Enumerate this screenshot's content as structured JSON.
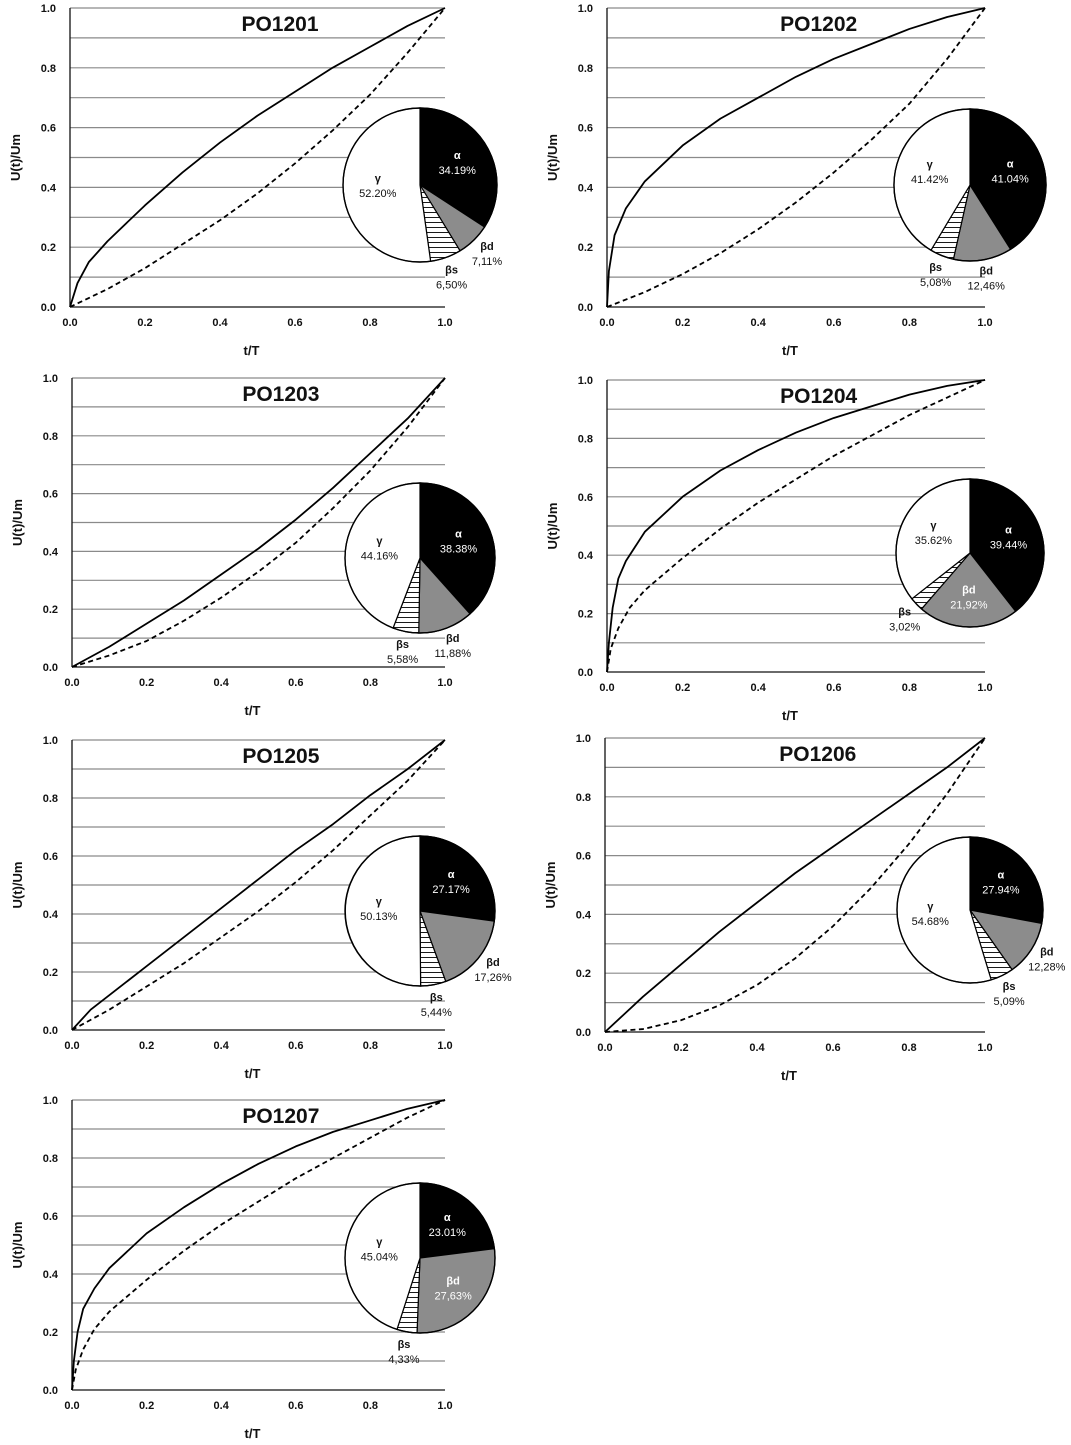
{
  "colors": {
    "alpha": "#000000",
    "beta_d": "#8c8c8c",
    "beta_s": "#ffffff",
    "gamma": "#ffffff",
    "grid": "#8a8a8a",
    "axis": "#111111"
  },
  "chart_data": [
    {
      "type": "line",
      "title": "PO1201",
      "xlabel": "t/T",
      "ylabel": "U(t)/Um",
      "xlim": [
        0,
        1
      ],
      "ylim": [
        0,
        1
      ],
      "xticks": [
        "0.0",
        "0.2",
        "0.4",
        "0.6",
        "0.8",
        "1.0"
      ],
      "yticks": [
        "0.0",
        "0.2",
        "0.4",
        "0.6",
        "0.8",
        "1.0"
      ],
      "series": [
        {
          "style": "solid",
          "x": [
            0,
            0.02,
            0.05,
            0.1,
            0.2,
            0.3,
            0.4,
            0.5,
            0.6,
            0.7,
            0.8,
            0.9,
            1.0
          ],
          "y": [
            0,
            0.08,
            0.15,
            0.22,
            0.34,
            0.45,
            0.55,
            0.64,
            0.72,
            0.8,
            0.87,
            0.94,
            1.0
          ]
        },
        {
          "style": "dashed",
          "x": [
            0,
            0.1,
            0.2,
            0.3,
            0.4,
            0.5,
            0.6,
            0.7,
            0.8,
            0.9,
            1.0
          ],
          "y": [
            0,
            0.06,
            0.13,
            0.21,
            0.29,
            0.38,
            0.48,
            0.59,
            0.71,
            0.85,
            1.0
          ]
        }
      ],
      "pie": {
        "title": "",
        "slices": [
          {
            "name": "α",
            "label": "34.19%",
            "value": 34.19,
            "color": "#000000"
          },
          {
            "name": "βd",
            "label": "7,11%",
            "value": 7.11,
            "color": "#8c8c8c"
          },
          {
            "name": "βs",
            "label": "6,50%",
            "value": 6.5,
            "color": "#ffffff",
            "hatch": true
          },
          {
            "name": "γ",
            "label": "52.20%",
            "value": 52.2,
            "color": "#ffffff"
          }
        ]
      }
    },
    {
      "type": "line",
      "title": "PO1202",
      "xlabel": "t/T",
      "ylabel": "U(t)/Um",
      "xlim": [
        0,
        1
      ],
      "ylim": [
        0,
        1
      ],
      "xticks": [
        "0.0",
        "0.2",
        "0.4",
        "0.6",
        "0.8",
        "1.0"
      ],
      "yticks": [
        "0.0",
        "0.2",
        "0.4",
        "0.6",
        "0.8",
        "1.0"
      ],
      "series": [
        {
          "style": "solid",
          "x": [
            0,
            0.005,
            0.02,
            0.05,
            0.1,
            0.2,
            0.3,
            0.4,
            0.5,
            0.6,
            0.7,
            0.8,
            0.9,
            1.0
          ],
          "y": [
            0,
            0.12,
            0.24,
            0.33,
            0.42,
            0.54,
            0.63,
            0.7,
            0.77,
            0.83,
            0.88,
            0.93,
            0.97,
            1.0
          ]
        },
        {
          "style": "dashed",
          "x": [
            0,
            0.1,
            0.2,
            0.3,
            0.4,
            0.5,
            0.6,
            0.7,
            0.8,
            0.9,
            1.0
          ],
          "y": [
            0,
            0.05,
            0.11,
            0.18,
            0.26,
            0.35,
            0.45,
            0.56,
            0.68,
            0.83,
            1.0
          ]
        }
      ],
      "pie": {
        "title": "",
        "slices": [
          {
            "name": "α",
            "label": "41.04%",
            "value": 41.04,
            "color": "#000000"
          },
          {
            "name": "βd",
            "label": "12,46%",
            "value": 12.46,
            "color": "#8c8c8c"
          },
          {
            "name": "βs",
            "label": "5,08%",
            "value": 5.08,
            "color": "#ffffff",
            "hatch": true
          },
          {
            "name": "γ",
            "label": "41.42%",
            "value": 41.42,
            "color": "#ffffff"
          }
        ]
      }
    },
    {
      "type": "line",
      "title": "PO1203",
      "xlabel": "t/T",
      "ylabel": "U(t)/Um",
      "xlim": [
        0,
        1
      ],
      "ylim": [
        0,
        1
      ],
      "xticks": [
        "0.0",
        "0.2",
        "0.4",
        "0.6",
        "0.8",
        "1.0"
      ],
      "yticks": [
        "0.0",
        "0.2",
        "0.4",
        "0.6",
        "0.8",
        "1.0"
      ],
      "series": [
        {
          "style": "solid",
          "x": [
            0,
            0.1,
            0.2,
            0.3,
            0.4,
            0.5,
            0.6,
            0.7,
            0.8,
            0.9,
            1.0
          ],
          "y": [
            0,
            0.07,
            0.15,
            0.23,
            0.32,
            0.41,
            0.51,
            0.62,
            0.74,
            0.86,
            1.0
          ]
        },
        {
          "style": "dashed",
          "x": [
            0,
            0.1,
            0.2,
            0.3,
            0.4,
            0.5,
            0.6,
            0.7,
            0.8,
            0.9,
            1.0
          ],
          "y": [
            0,
            0.04,
            0.09,
            0.16,
            0.24,
            0.33,
            0.43,
            0.55,
            0.68,
            0.83,
            1.0
          ]
        }
      ],
      "pie": {
        "title": "",
        "slices": [
          {
            "name": "α",
            "label": "38.38%",
            "value": 38.38,
            "color": "#000000"
          },
          {
            "name": "βd",
            "label": "11,88%",
            "value": 11.88,
            "color": "#8c8c8c"
          },
          {
            "name": "βs",
            "label": "5,58%",
            "value": 5.58,
            "color": "#ffffff",
            "hatch": true
          },
          {
            "name": "γ",
            "label": "44.16%",
            "value": 44.16,
            "color": "#ffffff"
          }
        ]
      }
    },
    {
      "type": "line",
      "title": "PO1204",
      "xlabel": "t/T",
      "ylabel": "U(t)/Um",
      "xlim": [
        0,
        1
      ],
      "ylim": [
        0,
        1
      ],
      "xticks": [
        "0.0",
        "0.2",
        "0.4",
        "0.6",
        "0.8",
        "1.0"
      ],
      "yticks": [
        "0.0",
        "0.2",
        "0.4",
        "0.6",
        "0.8",
        "1.0"
      ],
      "series": [
        {
          "style": "solid",
          "x": [
            0,
            0.005,
            0.015,
            0.03,
            0.05,
            0.1,
            0.2,
            0.3,
            0.4,
            0.5,
            0.6,
            0.7,
            0.8,
            0.9,
            1.0
          ],
          "y": [
            0,
            0.1,
            0.22,
            0.32,
            0.38,
            0.48,
            0.6,
            0.69,
            0.76,
            0.82,
            0.87,
            0.91,
            0.95,
            0.98,
            1.0
          ]
        },
        {
          "style": "dashed",
          "x": [
            0,
            0.01,
            0.03,
            0.06,
            0.1,
            0.2,
            0.3,
            0.4,
            0.5,
            0.6,
            0.7,
            0.8,
            0.9,
            1.0
          ],
          "y": [
            0,
            0.08,
            0.15,
            0.22,
            0.28,
            0.39,
            0.49,
            0.58,
            0.66,
            0.74,
            0.81,
            0.88,
            0.94,
            1.0
          ]
        }
      ],
      "pie": {
        "title": "",
        "slices": [
          {
            "name": "α",
            "label": "39.44%",
            "value": 39.44,
            "color": "#000000"
          },
          {
            "name": "βd",
            "label": "21,92%",
            "value": 21.92,
            "color": "#8c8c8c"
          },
          {
            "name": "βs",
            "label": "3,02%",
            "value": 3.02,
            "color": "#ffffff",
            "hatch": true
          },
          {
            "name": "γ",
            "label": "35.62%",
            "value": 35.62,
            "color": "#ffffff"
          }
        ]
      }
    },
    {
      "type": "line",
      "title": "PO1205",
      "xlabel": "t/T",
      "ylabel": "U(t)/Um",
      "xlim": [
        0,
        1
      ],
      "ylim": [
        0,
        1
      ],
      "xticks": [
        "0.0",
        "0.2",
        "0.4",
        "0.6",
        "0.8",
        "1.0"
      ],
      "yticks": [
        "0.0",
        "0.2",
        "0.4",
        "0.6",
        "0.8",
        "1.0"
      ],
      "series": [
        {
          "style": "solid",
          "x": [
            0,
            0.05,
            0.1,
            0.2,
            0.3,
            0.4,
            0.5,
            0.6,
            0.7,
            0.8,
            0.9,
            1.0
          ],
          "y": [
            0,
            0.07,
            0.12,
            0.22,
            0.32,
            0.42,
            0.52,
            0.62,
            0.71,
            0.81,
            0.9,
            1.0
          ]
        },
        {
          "style": "dashed",
          "x": [
            0,
            0.1,
            0.2,
            0.3,
            0.4,
            0.5,
            0.6,
            0.7,
            0.8,
            0.9,
            1.0
          ],
          "y": [
            0,
            0.07,
            0.15,
            0.23,
            0.32,
            0.41,
            0.51,
            0.62,
            0.74,
            0.86,
            1.0
          ]
        }
      ],
      "pie": {
        "title": "",
        "slices": [
          {
            "name": "α",
            "label": "27.17%",
            "value": 27.17,
            "color": "#000000"
          },
          {
            "name": "βd",
            "label": "17,26%",
            "value": 17.26,
            "color": "#8c8c8c"
          },
          {
            "name": "βs",
            "label": "5,44%",
            "value": 5.44,
            "color": "#ffffff",
            "hatch": true
          },
          {
            "name": "γ",
            "label": "50.13%",
            "value": 50.13,
            "color": "#ffffff"
          }
        ]
      }
    },
    {
      "type": "line",
      "title": "PO1206",
      "xlabel": "t/T",
      "ylabel": "U(t)/Um",
      "xlim": [
        0,
        1
      ],
      "ylim": [
        0,
        1
      ],
      "xticks": [
        "0.0",
        "0.2",
        "0.4",
        "0.6",
        "0.8",
        "1.0"
      ],
      "yticks": [
        "0.0",
        "0.2",
        "0.4",
        "0.6",
        "0.8",
        "1.0"
      ],
      "series": [
        {
          "style": "solid",
          "x": [
            0,
            0.05,
            0.1,
            0.2,
            0.3,
            0.4,
            0.5,
            0.6,
            0.7,
            0.8,
            0.9,
            1.0
          ],
          "y": [
            0,
            0.06,
            0.12,
            0.23,
            0.34,
            0.44,
            0.54,
            0.63,
            0.72,
            0.81,
            0.9,
            1.0
          ]
        },
        {
          "style": "dashed",
          "x": [
            0,
            0.1,
            0.2,
            0.3,
            0.4,
            0.5,
            0.6,
            0.7,
            0.8,
            0.9,
            1.0
          ],
          "y": [
            0,
            0.01,
            0.04,
            0.09,
            0.16,
            0.25,
            0.36,
            0.49,
            0.64,
            0.81,
            1.0
          ]
        }
      ],
      "pie": {
        "title": "",
        "slices": [
          {
            "name": "α",
            "label": "27.94%",
            "value": 27.94,
            "color": "#000000"
          },
          {
            "name": "βd",
            "label": "12,28%",
            "value": 12.28,
            "color": "#8c8c8c"
          },
          {
            "name": "βs",
            "label": "5,09%",
            "value": 5.09,
            "color": "#ffffff",
            "hatch": true
          },
          {
            "name": "γ",
            "label": "54.68%",
            "value": 54.68,
            "color": "#ffffff"
          }
        ]
      }
    },
    {
      "type": "line",
      "title": "PO1207",
      "xlabel": "t/T",
      "ylabel": "U(t)/Um",
      "xlim": [
        0,
        1
      ],
      "ylim": [
        0,
        1
      ],
      "xticks": [
        "0.0",
        "0.2",
        "0.4",
        "0.6",
        "0.8",
        "1.0"
      ],
      "yticks": [
        "0.0",
        "0.2",
        "0.4",
        "0.6",
        "0.8",
        "1.0"
      ],
      "series": [
        {
          "style": "solid",
          "x": [
            0,
            0.005,
            0.015,
            0.03,
            0.06,
            0.1,
            0.2,
            0.3,
            0.4,
            0.5,
            0.6,
            0.7,
            0.8,
            0.9,
            1.0
          ],
          "y": [
            0,
            0.1,
            0.2,
            0.28,
            0.35,
            0.42,
            0.54,
            0.63,
            0.71,
            0.78,
            0.84,
            0.89,
            0.93,
            0.97,
            1.0
          ]
        },
        {
          "style": "dashed",
          "x": [
            0,
            0.01,
            0.03,
            0.06,
            0.1,
            0.2,
            0.3,
            0.4,
            0.5,
            0.6,
            0.7,
            0.8,
            0.9,
            1.0
          ],
          "y": [
            0,
            0.07,
            0.14,
            0.21,
            0.27,
            0.38,
            0.48,
            0.57,
            0.65,
            0.73,
            0.8,
            0.87,
            0.94,
            1.0
          ]
        }
      ],
      "pie": {
        "title": "",
        "slices": [
          {
            "name": "α",
            "label": "23.01%",
            "value": 23.01,
            "color": "#000000"
          },
          {
            "name": "βd",
            "label": "27,63%",
            "value": 27.63,
            "color": "#8c8c8c"
          },
          {
            "name": "βs",
            "label": "4,33%",
            "value": 4.33,
            "color": "#ffffff",
            "hatch": true
          },
          {
            "name": "γ",
            "label": "45.04%",
            "value": 45.04,
            "color": "#ffffff"
          }
        ]
      }
    }
  ]
}
